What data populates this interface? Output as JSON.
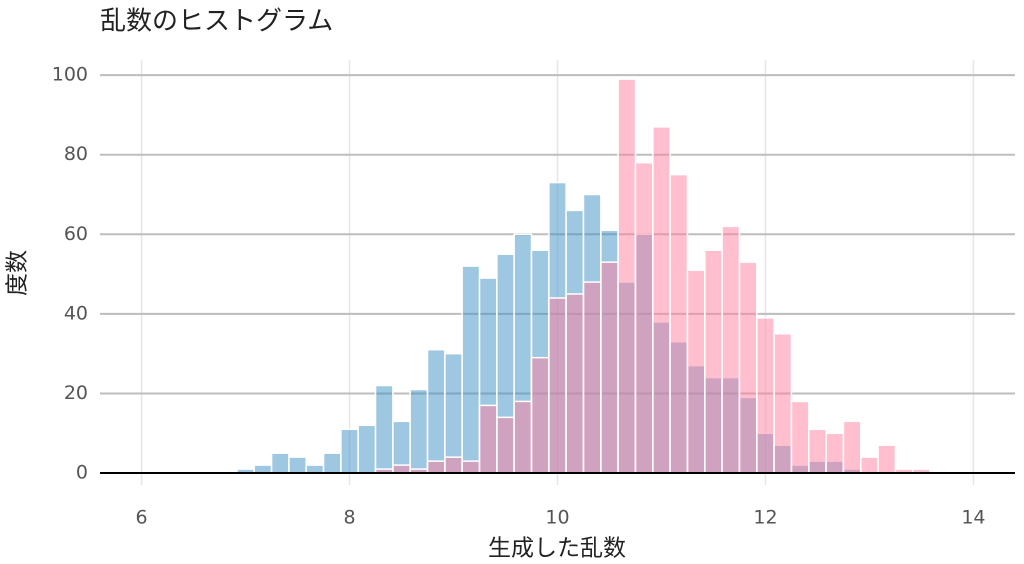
{
  "chart_data": {
    "type": "histogram",
    "title": "乱数のヒストグラム",
    "x_label": "生成した乱数",
    "y_label": "度数",
    "bins": [
      6.917,
      7.083,
      7.25,
      7.417,
      7.583,
      7.75,
      7.917,
      8.083,
      8.25,
      8.417,
      8.583,
      8.75,
      8.917,
      9.083,
      9.25,
      9.417,
      9.583,
      9.75,
      9.917,
      10.083,
      10.25,
      10.417,
      10.583,
      10.75,
      10.917,
      11.083,
      11.25,
      11.417,
      11.583,
      11.75,
      11.917,
      12.083,
      12.25,
      12.417,
      12.583,
      12.75,
      12.917,
      13.083,
      13.25,
      13.417,
      13.583
    ],
    "series": [
      {
        "color": "#3d8fc4",
        "values": [
          1,
          2,
          5,
          4,
          2,
          5,
          11,
          12,
          22,
          13,
          21,
          31,
          30,
          52,
          49,
          55,
          60,
          56,
          73,
          66,
          70,
          61,
          48,
          60,
          38,
          33,
          27,
          24,
          24,
          19,
          10,
          7,
          2,
          3,
          3,
          1,
          0,
          0,
          0,
          0
        ]
      },
      {
        "color": "#ff7fa0",
        "values": [
          0,
          0,
          0,
          0,
          0,
          0,
          0,
          0,
          1,
          2,
          1,
          3,
          4,
          3,
          17,
          14,
          18,
          29,
          44,
          45,
          48,
          53,
          99,
          78,
          87,
          75,
          51,
          56,
          62,
          53,
          39,
          35,
          18,
          11,
          10,
          13,
          4,
          7,
          1,
          1
        ]
      }
    ],
    "xlim": [
      5.6,
      14.4
    ],
    "xticks": [
      6,
      8,
      10,
      12,
      14
    ],
    "ylim": [
      -3,
      103.8
    ],
    "yticks": [
      0,
      20,
      40,
      60,
      80,
      100
    ],
    "grid": true
  }
}
